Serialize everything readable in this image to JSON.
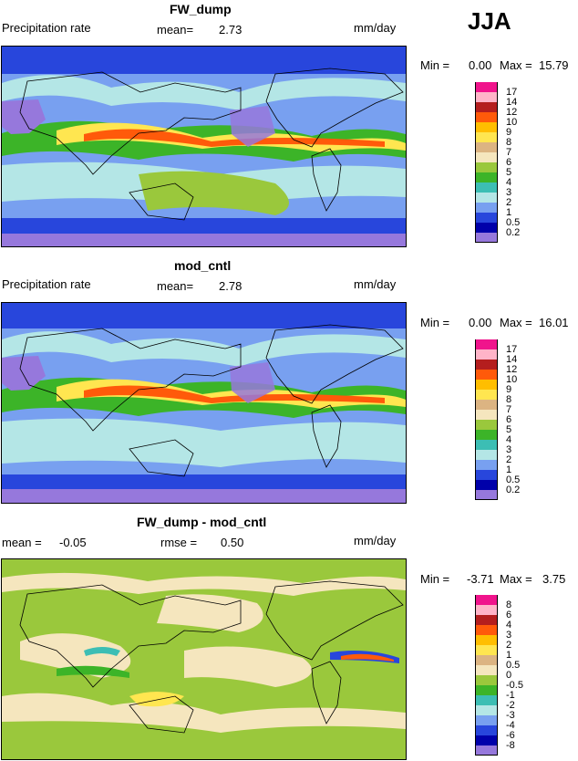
{
  "season": "JJA",
  "panels": [
    {
      "title": "FW_dump",
      "left_label": "Precipitation rate",
      "mean_label": "mean=",
      "mean_value": "2.73",
      "units": "mm/day",
      "min_label": "Min =",
      "min_value": "0.00",
      "max_label": "Max =",
      "max_value": "15.79",
      "scale_type": "abs",
      "levels": [
        "17",
        "14",
        "12",
        "10",
        "9",
        "8",
        "7",
        "6",
        "5",
        "4",
        "3",
        "2",
        "1",
        "0.5",
        "0.2"
      ]
    },
    {
      "title": "mod_cntl",
      "left_label": "Precipitation rate",
      "mean_label": "mean=",
      "mean_value": "2.78",
      "units": "mm/day",
      "min_label": "Min =",
      "min_value": "0.00",
      "max_label": "Max =",
      "max_value": "16.01",
      "scale_type": "abs",
      "levels": [
        "17",
        "14",
        "12",
        "10",
        "9",
        "8",
        "7",
        "6",
        "5",
        "4",
        "3",
        "2",
        "1",
        "0.5",
        "0.2"
      ]
    },
    {
      "title": "FW_dump - mod_cntl",
      "left_label": "mean =",
      "mean_label": "rmse =",
      "mean_value": "0.50",
      "left_value": "-0.05",
      "units": "mm/day",
      "min_label": "Min =",
      "min_value": "-3.71",
      "max_label": "Max =",
      "max_value": "3.75",
      "scale_type": "diff",
      "levels": [
        "8",
        "6",
        "4",
        "3",
        "2",
        "1",
        "0.5",
        "0",
        "-0.5",
        "-1",
        "-2",
        "-3",
        "-4",
        "-6",
        "-8"
      ]
    }
  ],
  "colors": {
    "abs": [
      "#f0148c",
      "#ffb4c8",
      "#b41e1e",
      "#ff5a0a",
      "#ffbe00",
      "#ffe650",
      "#dcb482",
      "#f5e6be",
      "#9ac83c",
      "#3cb428",
      "#3cbeb4",
      "#b4e6e6",
      "#78a0f0",
      "#2846dc",
      "#0000aa",
      "#9678dc"
    ],
    "diff": [
      "#f0148c",
      "#ffb4c8",
      "#b41e1e",
      "#ff5a0a",
      "#ffbe00",
      "#ffe650",
      "#dcb482",
      "#f5e6be",
      "#9ac83c",
      "#3cb428",
      "#3cbeb4",
      "#b4e6e6",
      "#78a0f0",
      "#2846dc",
      "#0000aa",
      "#9678dc"
    ]
  }
}
